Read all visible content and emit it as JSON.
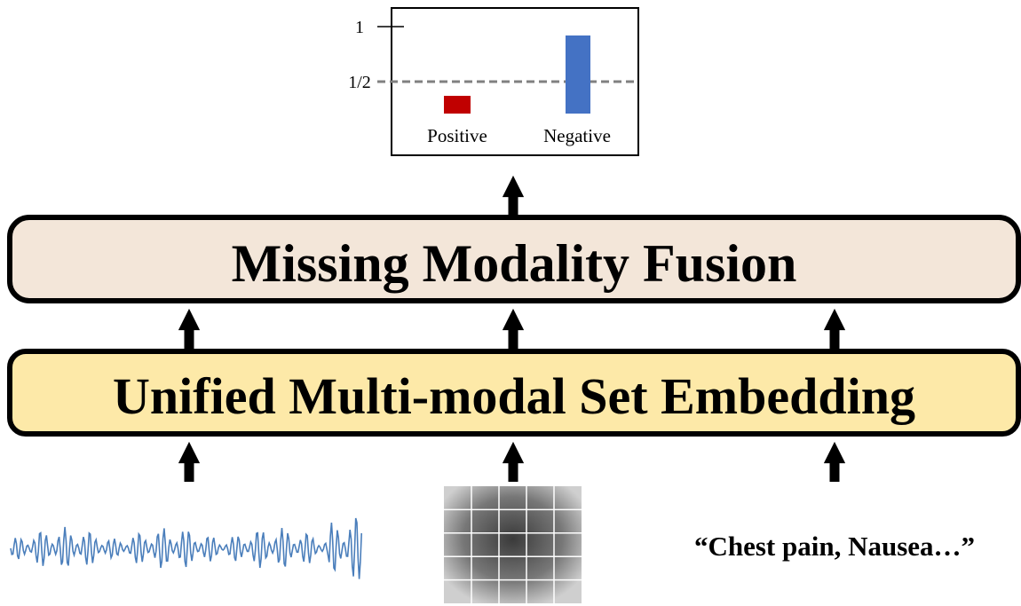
{
  "plot": {
    "ticks": [
      "1",
      "1/2"
    ],
    "labels": [
      "Positive",
      "Negative"
    ]
  },
  "fusion": {
    "title": "Missing Modality Fusion"
  },
  "embedding": {
    "title": "Unified Multi-modal Set Embedding"
  },
  "inputs": {
    "text": "“Chest pain,  Nausea…”"
  }
}
